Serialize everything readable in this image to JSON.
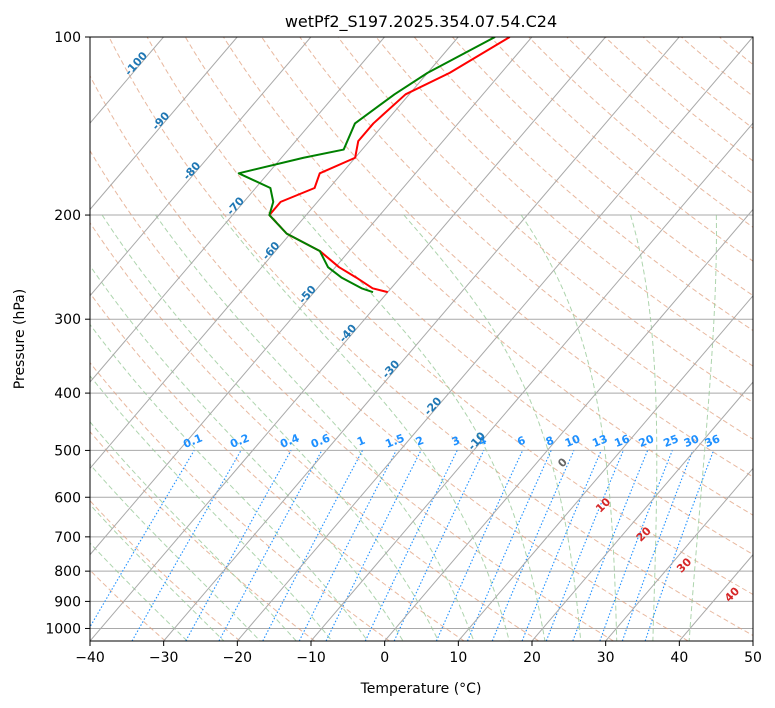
{
  "chart_data": {
    "type": "line",
    "title": "wetPf2_S197.2025.354.07.54.C24",
    "xlabel": "Temperature (°C)",
    "ylabel": "Pressure (hPa)",
    "xlim": [
      -40,
      50
    ],
    "plim": [
      1050,
      100
    ],
    "x_ticks": [
      -40,
      -30,
      -20,
      -10,
      0,
      10,
      20,
      30,
      40,
      50
    ],
    "x_tick_labels": [
      "−40",
      "−30",
      "−20",
      "−10",
      "0",
      "10",
      "20",
      "30",
      "40",
      "50"
    ],
    "p_ticks": [
      100,
      200,
      300,
      400,
      500,
      600,
      700,
      800,
      900,
      1000
    ],
    "p_tick_labels": [
      "100",
      "200",
      "300",
      "400",
      "500",
      "600",
      "700",
      "800",
      "900",
      "1000"
    ],
    "isotherms": {
      "color": "#a9a9a9",
      "values": [
        -100,
        -90,
        -80,
        -70,
        -60,
        -50,
        -40,
        -30,
        -20,
        -10,
        0,
        10,
        20,
        30,
        40,
        50,
        60,
        70,
        80,
        90,
        100,
        110,
        120
      ],
      "labels": [
        {
          "text": "-100",
          "t": -100,
          "p": 112
        },
        {
          "text": "-90",
          "t": -90,
          "p": 140
        },
        {
          "text": "-80",
          "t": -80,
          "p": 170
        },
        {
          "text": "-70",
          "t": -70,
          "p": 195
        },
        {
          "text": "-60",
          "t": -60,
          "p": 232
        },
        {
          "text": "-50",
          "t": -50,
          "p": 275
        },
        {
          "text": "-40",
          "t": -40,
          "p": 320
        },
        {
          "text": "-30",
          "t": -30,
          "p": 368
        },
        {
          "text": "-20",
          "t": -20,
          "p": 425
        },
        {
          "text": "-10",
          "t": -10,
          "p": 487
        }
      ]
    },
    "mixing_ratio_lines": {
      "color": "#1e90ff",
      "values": [
        "0.1",
        "0.2",
        "0.4",
        "0.6",
        "1",
        "1.5",
        "2",
        "3",
        "4",
        "6",
        "8",
        "10",
        "13",
        "16",
        "20",
        "25",
        "30",
        "36"
      ],
      "label_pressure": 500
    },
    "dry_adiabats": {
      "color": "#e0a07f",
      "theta_K": [
        190,
        200,
        210,
        220,
        230,
        240,
        250,
        260,
        270,
        280,
        290,
        300,
        310,
        320,
        330,
        340,
        350,
        360,
        370,
        380,
        390,
        400,
        410,
        420,
        430,
        440,
        450,
        460,
        470,
        480,
        490,
        500,
        510,
        520,
        530
      ]
    },
    "moist_adiabats": {
      "color": "#98c998",
      "start_temps_1000hPa": [
        -30,
        -25,
        -20,
        -15,
        -10,
        -5,
        0,
        5,
        10,
        15,
        20,
        25,
        30,
        35,
        40
      ]
    },
    "theta_e_labels": {
      "color": "#d62728",
      "items": [
        {
          "text": "0",
          "color": "#666666",
          "t": 24.5,
          "p": 530
        },
        {
          "text": "10",
          "t": 30,
          "p": 625
        },
        {
          "text": "20",
          "t": 35.5,
          "p": 700
        },
        {
          "text": "30",
          "t": 41,
          "p": 790
        },
        {
          "text": "40",
          "t": 47.5,
          "p": 885
        }
      ]
    },
    "series": [
      {
        "name": "temperature",
        "color": "#ff0000",
        "points": [
          [
            -53.0,
            100
          ],
          [
            -57.0,
            115
          ],
          [
            -60.5,
            125
          ],
          [
            -61.5,
            140
          ],
          [
            -61.5,
            150
          ],
          [
            -60.0,
            160
          ],
          [
            -63.0,
            170
          ],
          [
            -62.0,
            180
          ],
          [
            -65.0,
            190
          ],
          [
            -65.0,
            200
          ],
          [
            -60.5,
            215
          ],
          [
            -54.0,
            230
          ],
          [
            -49.5,
            245
          ],
          [
            -46.0,
            255
          ],
          [
            -42.5,
            266
          ],
          [
            -40.0,
            270
          ]
        ]
      },
      {
        "name": "dewpoint",
        "color": "#008000",
        "points": [
          [
            -55.0,
            100
          ],
          [
            -60.0,
            115
          ],
          [
            -62.0,
            125
          ],
          [
            -64.0,
            140
          ],
          [
            -62.5,
            155
          ],
          [
            -67.0,
            160
          ],
          [
            -74.0,
            170
          ],
          [
            -68.0,
            180
          ],
          [
            -66.0,
            190
          ],
          [
            -65.0,
            200
          ],
          [
            -60.5,
            215
          ],
          [
            -54.0,
            230
          ],
          [
            -51.0,
            245
          ],
          [
            -48.0,
            255
          ],
          [
            -44.0,
            266
          ],
          [
            -42.0,
            270
          ]
        ]
      }
    ]
  }
}
